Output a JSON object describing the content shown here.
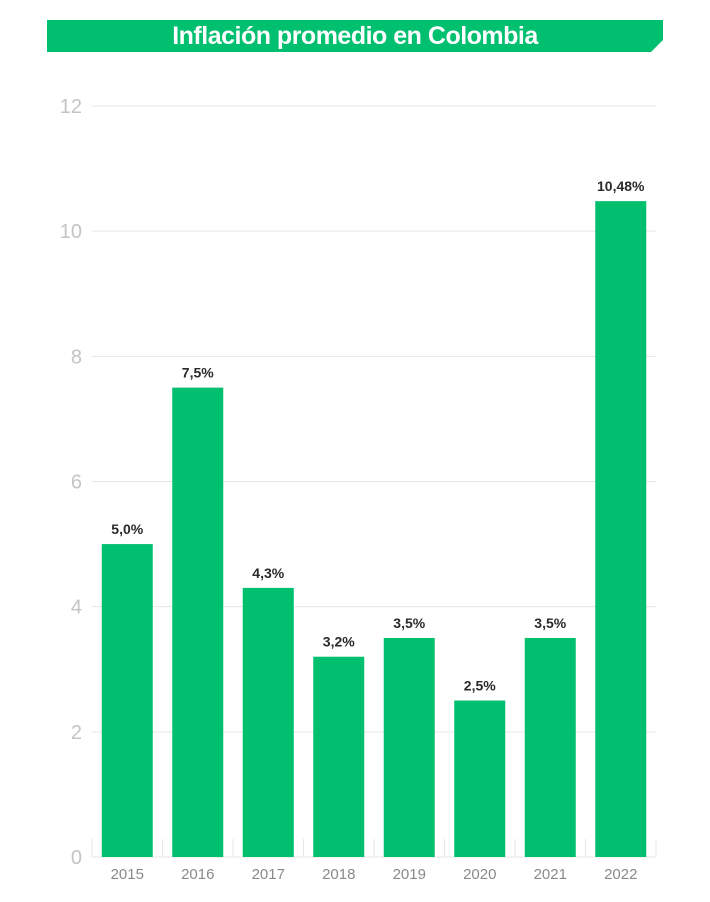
{
  "chart_data": {
    "type": "bar",
    "title": "Inflación promedio en Colombia",
    "categories": [
      "2015",
      "2016",
      "2017",
      "2018",
      "2019",
      "2020",
      "2021",
      "2022"
    ],
    "values": [
      5.0,
      7.5,
      4.3,
      3.2,
      3.5,
      2.5,
      3.5,
      10.48
    ],
    "data_labels": [
      "5,0%",
      "7,5%",
      "4,3%",
      "3,2%",
      "3,5%",
      "2,5%",
      "3,5%",
      "10,48%"
    ],
    "yticks": [
      "0",
      "2",
      "4",
      "6",
      "8",
      "10",
      "12"
    ],
    "ylim": [
      0,
      12
    ],
    "xlabel": "",
    "ylabel": "",
    "grid": true,
    "legend": "none",
    "colors": {
      "bar": "#00bf6f",
      "title_band": "#00bf6f",
      "title_text": "#ffffff",
      "grid": "#e6e6e6",
      "ytick": "#c4c4c4",
      "xtick": "#8a8a8a",
      "data_label": "#2a2a2a"
    }
  }
}
